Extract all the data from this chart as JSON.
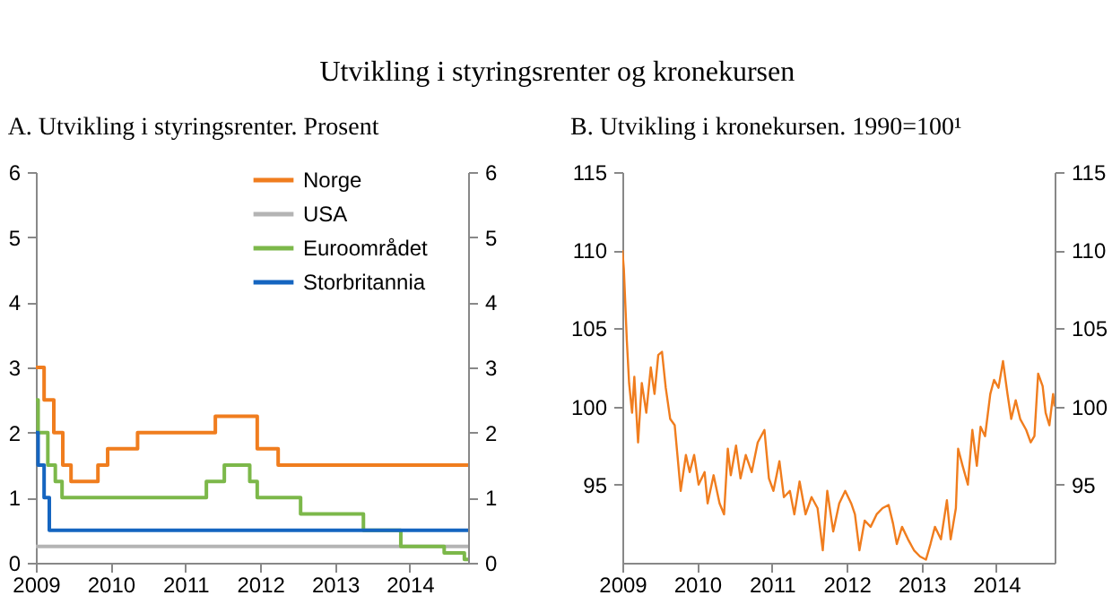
{
  "chart_data": [
    {
      "type": "step",
      "title": "Utvikling i styringsrenter og kronekursen",
      "subtitle": "A.  Utvikling i styringsrenter. Prosent",
      "xlim": [
        2009,
        2014.78
      ],
      "xticks": [
        2009,
        2010,
        2011,
        2012,
        2013,
        2014
      ],
      "ylim": [
        0,
        6
      ],
      "yticks": [
        0,
        1,
        2,
        3,
        4,
        5,
        6
      ],
      "y2lim": [
        0,
        6
      ],
      "y2ticks": [
        0,
        1,
        2,
        3,
        4,
        5,
        6
      ],
      "legend": "top right",
      "grid": false,
      "series": [
        {
          "name": "Norge",
          "color": "#f07d1e",
          "x": [
            2009,
            2009.11,
            2009.24,
            2009.36,
            2009.47,
            2009.83,
            2009.96,
            2010.36,
            2011.4,
            2011.96,
            2012.24,
            2014.78
          ],
          "values": [
            3,
            2.5,
            2,
            1.5,
            1.25,
            1.5,
            1.75,
            2,
            2.25,
            1.75,
            1.5,
            1.5
          ]
        },
        {
          "name": "USA",
          "color": "#b4b4b4",
          "x": [
            2009,
            2014.78
          ],
          "values": [
            0.25,
            0.25
          ]
        },
        {
          "name": "Euroområdet",
          "color": "#7cb84a",
          "x": [
            2009,
            2009.03,
            2009.16,
            2009.26,
            2009.35,
            2011.28,
            2011.52,
            2011.86,
            2011.96,
            2012.54,
            2013.38,
            2013.88,
            2014.46,
            2014.73,
            2014.78
          ],
          "values": [
            2.5,
            2,
            1.5,
            1.25,
            1,
            1.25,
            1.5,
            1.25,
            1,
            0.75,
            0.5,
            0.25,
            0.15,
            0.05,
            0.05
          ]
        },
        {
          "name": "Storbritannia",
          "color": "#1565c0",
          "x": [
            2009,
            2009.03,
            2009.11,
            2009.18,
            2014.78
          ],
          "values": [
            2,
            1.5,
            1,
            0.5,
            0.5
          ]
        }
      ]
    },
    {
      "type": "line",
      "subtitle": "B.  Utvikling i kronekursen. 1990=100¹",
      "xlim": [
        2009,
        2014.78
      ],
      "xticks": [
        2009,
        2010,
        2011,
        2012,
        2013,
        2014
      ],
      "ylim": [
        90,
        115
      ],
      "yticks": [
        95,
        100,
        105,
        110,
        115
      ],
      "y2lim": [
        90,
        115
      ],
      "y2ticks": [
        95,
        100,
        105,
        110,
        115
      ],
      "grid": false,
      "series": [
        {
          "color": "#f08a24",
          "x": [
            2009.0,
            2009.02,
            2009.06,
            2009.09,
            2009.13,
            2009.16,
            2009.21,
            2009.26,
            2009.32,
            2009.38,
            2009.43,
            2009.48,
            2009.53,
            2009.58,
            2009.64,
            2009.7,
            2009.78,
            2009.85,
            2009.9,
            2009.96,
            2010.02,
            2010.1,
            2010.14,
            2010.22,
            2010.3,
            2010.36,
            2010.41,
            2010.45,
            2010.52,
            2010.58,
            2010.65,
            2010.73,
            2010.81,
            2010.9,
            2010.96,
            2011.02,
            2011.1,
            2011.16,
            2011.24,
            2011.3,
            2011.37,
            2011.45,
            2011.53,
            2011.61,
            2011.68,
            2011.74,
            2011.82,
            2011.9,
            2011.98,
            2012.06,
            2012.11,
            2012.17,
            2012.24,
            2012.32,
            2012.4,
            2012.48,
            2012.56,
            2012.62,
            2012.67,
            2012.74,
            2012.82,
            2012.9,
            2012.98,
            2013.06,
            2013.12,
            2013.18,
            2013.26,
            2013.34,
            2013.39,
            2013.46,
            2013.49,
            2013.55,
            2013.62,
            2013.68,
            2013.74,
            2013.79,
            2013.85,
            2013.92,
            2013.97,
            2014.03,
            2014.09,
            2014.15,
            2014.2,
            2014.26,
            2014.32,
            2014.4,
            2014.46,
            2014.51,
            2014.56,
            2014.62,
            2014.66,
            2014.71,
            2014.76,
            2014.78
          ],
          "values": [
            110,
            108.8,
            104.2,
            101.5,
            99.6,
            101.9,
            97.7,
            101.5,
            99.6,
            102.5,
            100.8,
            103.3,
            103.5,
            101.2,
            99.2,
            98.8,
            94.6,
            96.9,
            95.8,
            96.9,
            95.0,
            95.8,
            93.8,
            95.6,
            93.8,
            93.1,
            97.3,
            95.6,
            97.5,
            95.4,
            96.9,
            95.8,
            97.7,
            98.5,
            95.4,
            94.6,
            96.5,
            94.2,
            94.6,
            93.1,
            95.2,
            93.1,
            94.2,
            93.5,
            90.8,
            94.6,
            92.0,
            93.8,
            94.6,
            93.8,
            93.1,
            90.8,
            92.7,
            92.3,
            93.1,
            93.5,
            93.7,
            92.5,
            91.2,
            92.3,
            91.5,
            90.8,
            90.4,
            90.2,
            91.2,
            92.3,
            91.5,
            94.0,
            91.5,
            93.5,
            97.3,
            96.2,
            95.0,
            98.5,
            96.2,
            98.7,
            98.1,
            100.8,
            101.7,
            101.2,
            102.9,
            100.8,
            99.2,
            100.4,
            99.2,
            98.5,
            97.7,
            98.1,
            102.1,
            101.3,
            99.6,
            98.8,
            100.8,
            100.0
          ]
        }
      ]
    }
  ]
}
